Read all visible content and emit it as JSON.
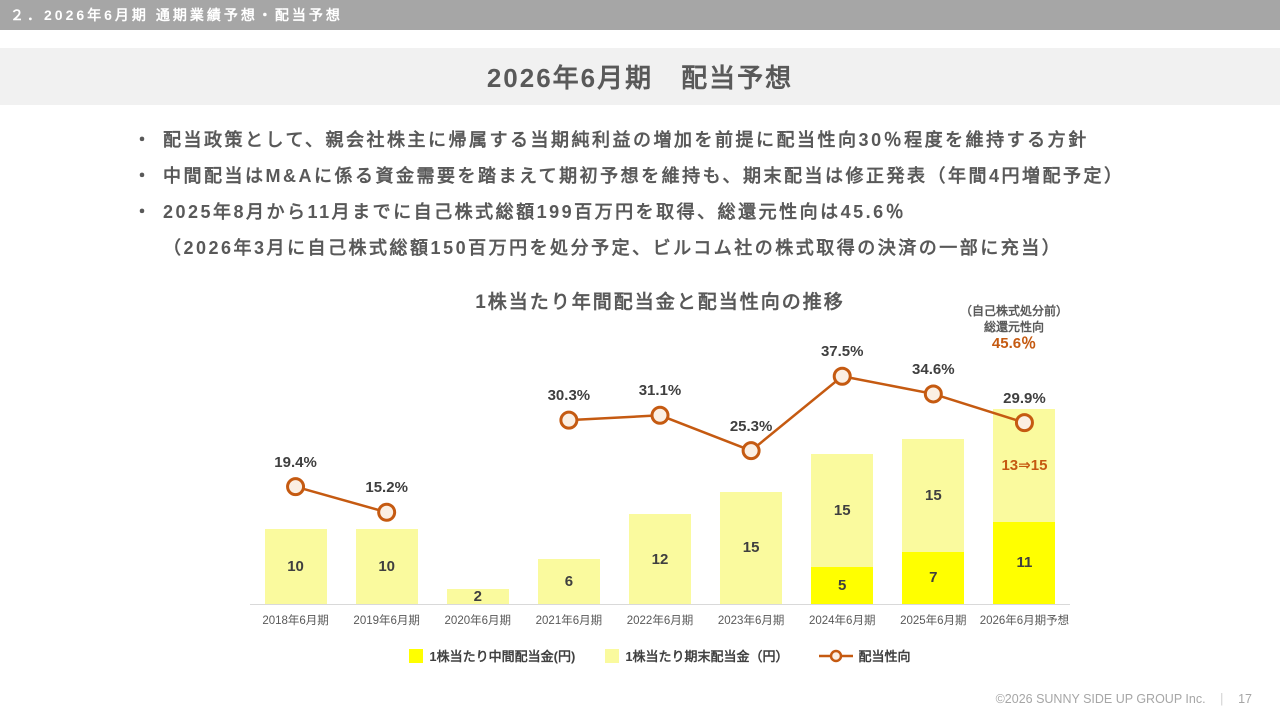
{
  "top_bar": {
    "label": "２．2026年6月期 通期業績予想・配当予想"
  },
  "header": {
    "title": "2026年6月期　配当予想"
  },
  "bullets": [
    {
      "marker": "・",
      "text": "配当政策として、親会社株主に帰属する当期純利益の増加を前提に配当性向30％程度を維持する方針"
    },
    {
      "marker": "・",
      "text": "中間配当はM&Aに係る資金需要を踏まえて期初予想を維持も、期末配当は修正発表（年間4円増配予定）"
    },
    {
      "marker": "・",
      "text": "2025年8月から11月までに自己株式総額199百万円を取得、総還元性向は45.6％"
    },
    {
      "marker": "",
      "text": "（2026年3月に自己株式総額150百万円を処分予定、ビルコム社の株式取得の決済の一部に充当）"
    }
  ],
  "chart": {
    "title": "1株当たり年間配当金と配当性向の推移",
    "annotation": {
      "line1": "（自己株式処分前）",
      "line2": "総還元性向",
      "value": "45.6％"
    }
  },
  "chart_data": {
    "type": "combo-stacked-bar-line",
    "title": "1株当たり年間配当金と配当性向の推移",
    "categories": [
      "2018年6月期",
      "2019年6月期",
      "2020年6月期",
      "2021年6月期",
      "2022年6月期",
      "2023年6月期",
      "2024年6月期",
      "2025年6月期",
      "2026年6月期予想"
    ],
    "series": [
      {
        "name": "1株当たり中間配当金(円)",
        "type": "bar",
        "color": "#FFFF00",
        "values": [
          null,
          null,
          null,
          null,
          null,
          null,
          5,
          7,
          11
        ]
      },
      {
        "name": "1株当たり期末配当金（円）",
        "type": "bar",
        "color": "#FAFA9E",
        "values": [
          10,
          10,
          2,
          6,
          12,
          15,
          15,
          15,
          15
        ],
        "value_labels": [
          "10",
          "10",
          "2",
          "6",
          "12",
          "15",
          "15",
          "15",
          "13⇒15"
        ],
        "label_colors": [
          null,
          null,
          null,
          null,
          null,
          null,
          null,
          null,
          "#C55A11"
        ]
      },
      {
        "name": "配当性向",
        "type": "line",
        "color": "#C55A11",
        "marker_fill": "#FBEFE3",
        "values": [
          19.4,
          15.2,
          null,
          30.3,
          31.1,
          25.3,
          37.5,
          34.6,
          29.9
        ],
        "value_labels": [
          "19.4%",
          "15.2%",
          null,
          "30.3%",
          "31.1%",
          "25.3%",
          "37.5%",
          "34.6%",
          "29.9%"
        ]
      }
    ],
    "bar_axis": {
      "unit": "円",
      "max": 30
    },
    "line_axis": {
      "unit": "%",
      "max": 45
    },
    "grid": false,
    "legend_position": "bottom"
  },
  "colors": {
    "accent_orange": "#C55A11",
    "interim_bar_yellow": "#FFFF00",
    "yearend_bar_pale_yellow": "#FAFA9E",
    "header_gray": "#A6A6A6",
    "band_gray": "#F1F1F1",
    "text_gray": "#595959"
  },
  "footer": {
    "copyright": "©2026 SUNNY SIDE UP GROUP Inc.",
    "separator": "｜",
    "page": "17"
  }
}
